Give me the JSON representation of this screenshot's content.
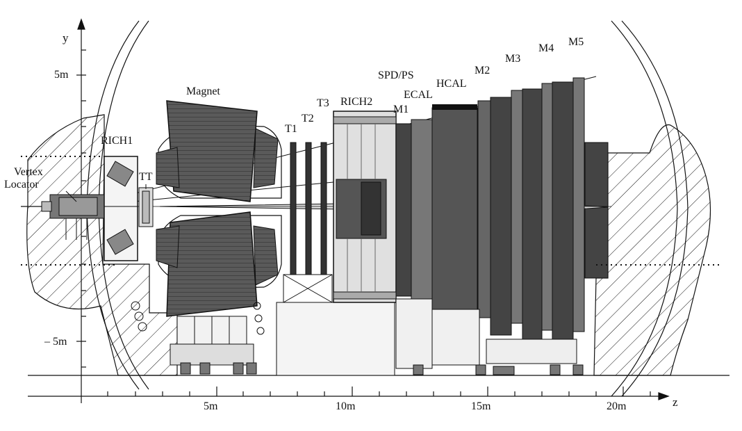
{
  "axes": {
    "y_axis_label": "y",
    "z_axis_label": "z",
    "y_ticks": [
      "5m",
      "– 5m"
    ],
    "z_ticks": [
      "5m",
      "10m",
      "15m",
      "20m"
    ]
  },
  "detectors": {
    "vertex_locator": [
      "Vertex",
      "Locator"
    ],
    "rich1": "RICH1",
    "tt": "TT",
    "magnet": "Magnet",
    "t1": "T1",
    "t2": "T2",
    "t3": "T3",
    "rich2": "RICH2",
    "m1": "M1",
    "spd_ps": "SPD/PS",
    "ecal": "ECAL",
    "hcal": "HCAL",
    "m2": "M2",
    "m3": "M3",
    "m4": "M4",
    "m5": "M5"
  },
  "colors": {
    "line": "#111111",
    "magnet_fill": "#5a5a5a",
    "ecal_fill": "#6e6e6e",
    "hcal_fill": "#555555",
    "muon_fill": "#4a4a4a",
    "light_fill": "#d8d8d8",
    "support_fill": "#eeeeee"
  }
}
